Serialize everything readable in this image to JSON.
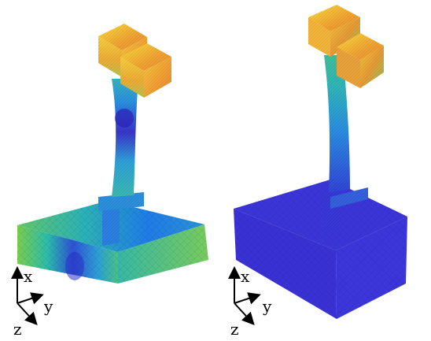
{
  "panels": [
    {
      "id": "left",
      "axes": {
        "x_label": "x",
        "y_label": "y",
        "z_label": "z"
      }
    },
    {
      "id": "right",
      "axes": {
        "x_label": "x",
        "y_label": "y",
        "z_label": "z"
      }
    }
  ],
  "colors": {
    "low": "#3a28d6",
    "mid_blue": "#1e7ee0",
    "cyan": "#1fb7b5",
    "green": "#6cc94f",
    "yellow": "#f6d93b",
    "orange": "#f0a233",
    "background": "#ffffff"
  }
}
